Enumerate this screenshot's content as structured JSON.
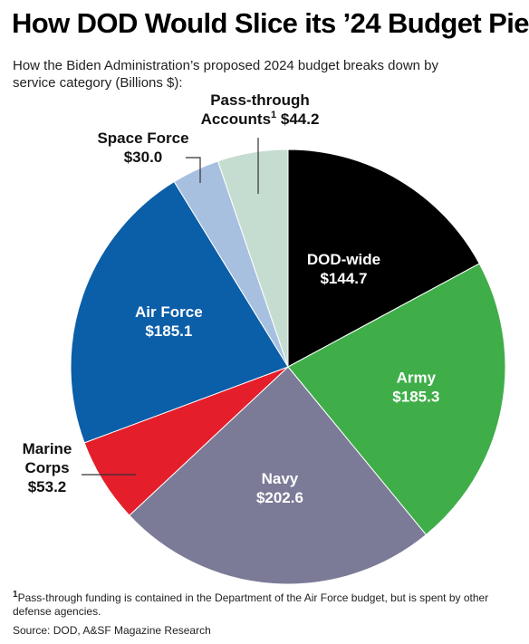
{
  "chart_data": {
    "type": "pie",
    "title": "How DOD Would Slice its ’24 Budget Pie",
    "subtitle": "How the Biden Administration’s proposed 2024 budget breaks down by service category (Billions $):",
    "unit": "Billions $",
    "start": "12 o'clock",
    "direction": "clockwise",
    "slices": [
      {
        "label": "DOD-wide",
        "value_label": "$144.7",
        "value": 144.7,
        "color": "#000000",
        "text_color": "#ffffff"
      },
      {
        "label": "Army",
        "value_label": "$185.3",
        "value": 185.3,
        "color": "#3fae49",
        "text_color": "#ffffff"
      },
      {
        "label": "Navy",
        "value_label": "$202.6",
        "value": 202.6,
        "color": "#7b7b98",
        "text_color": "#ffffff"
      },
      {
        "label": "Marine Corps",
        "label_lines": [
          "Marine",
          "Corps"
        ],
        "value_label": "$53.2",
        "value": 53.2,
        "color": "#e41e2b",
        "text_color": "#111111"
      },
      {
        "label": "Air Force",
        "value_label": "$185.1",
        "value": 185.1,
        "color": "#0b5ea8",
        "text_color": "#ffffff"
      },
      {
        "label": "Space Force",
        "value_label": "$30.0",
        "value": 30.0,
        "color": "#a8c0e0",
        "text_color": "#111111"
      },
      {
        "label": "Pass-through Accounts",
        "label_lines": [
          "Pass-through",
          "Accounts"
        ],
        "footnote_mark": "1",
        "value_label": "$44.2",
        "value": 44.2,
        "color": "#c5ddd0",
        "text_color": "#111111"
      }
    ]
  },
  "footnote": {
    "mark": "1",
    "text": "Pass-through funding is contained in the Department of the Air Force budget, but is spent by other defense agencies."
  },
  "source": "Source: DOD, A&SF Magazine Research"
}
